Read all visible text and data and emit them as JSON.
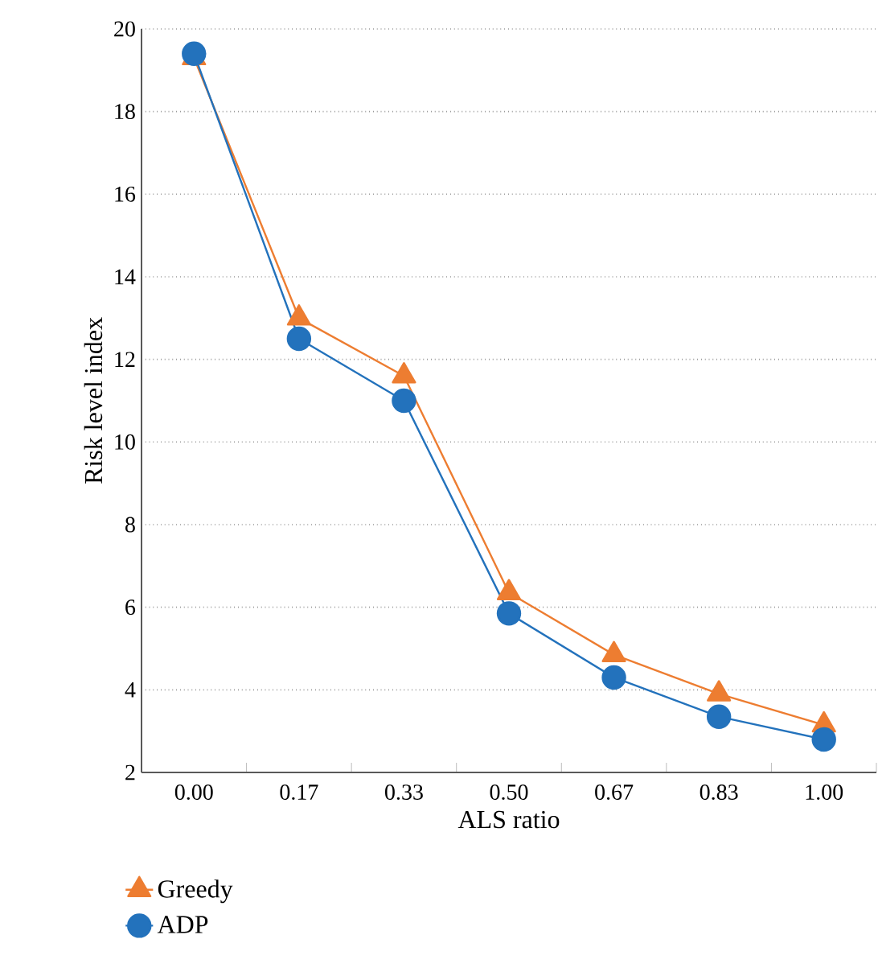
{
  "chart_data": {
    "type": "line",
    "xlabel": "ALS ratio",
    "ylabel": "Risk level index",
    "categories": [
      "0.00",
      "0.17",
      "0.33",
      "0.50",
      "0.67",
      "0.83",
      "1.00"
    ],
    "series": [
      {
        "name": "Greedy",
        "color": "#ed7d31",
        "marker": "triangle",
        "values": [
          19.3,
          13.0,
          11.6,
          6.35,
          4.85,
          3.9,
          3.15
        ]
      },
      {
        "name": "ADP",
        "color": "#2372bc",
        "marker": "circle",
        "values": [
          19.4,
          12.5,
          11.0,
          5.85,
          4.3,
          3.35,
          2.8
        ]
      }
    ],
    "ylim": [
      2,
      20
    ],
    "yticks": [
      2,
      4,
      6,
      8,
      10,
      12,
      14,
      16,
      18,
      20
    ],
    "grid": "y",
    "legend": "bottom left"
  }
}
